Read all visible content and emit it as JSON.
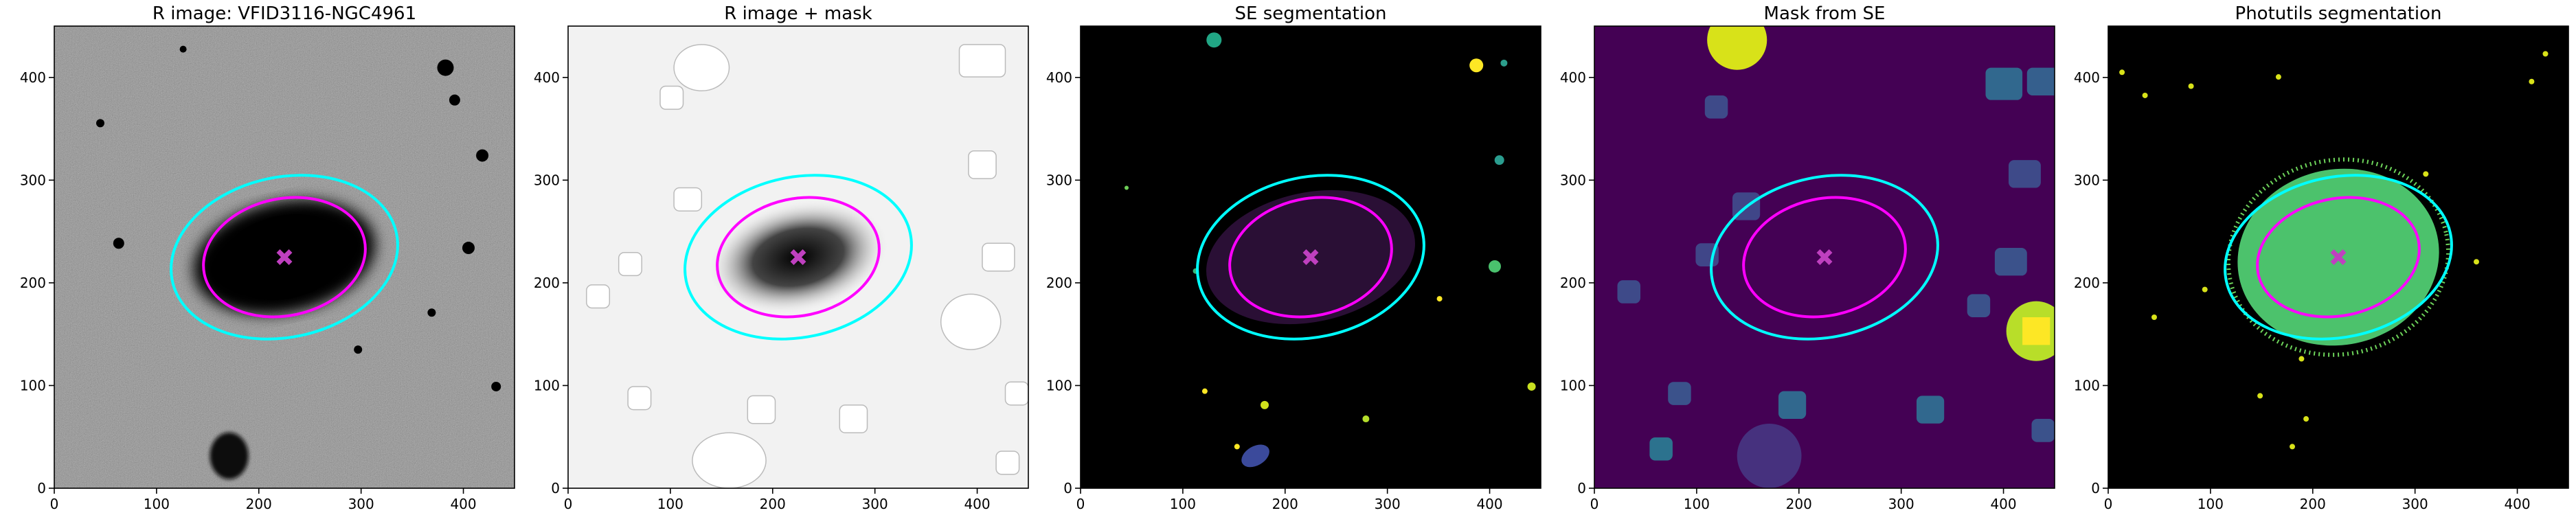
{
  "chart_data": [
    {
      "type": "image",
      "title": "R image: VFID3116-NGC4961",
      "background": "#7a7a7a",
      "xlim": [
        0,
        450
      ],
      "ylim": [
        0,
        450
      ],
      "xticks": [
        0,
        100,
        200,
        300,
        400
      ],
      "yticks": [
        0,
        100,
        200,
        300,
        400
      ],
      "ellipses": [
        {
          "color": "#00ffff",
          "cx": 225,
          "cy": 225,
          "a": 112,
          "b": 78,
          "angle": 12
        },
        {
          "color": "#ff00ff",
          "cx": 225,
          "cy": 225,
          "a": 80,
          "b": 57,
          "angle": 12
        }
      ],
      "center": {
        "x": 225,
        "y": 225,
        "color": "#bf40bf"
      }
    },
    {
      "type": "image",
      "title": "R image + mask",
      "background": "#f2f2f2",
      "xlim": [
        0,
        450
      ],
      "ylim": [
        0,
        450
      ],
      "xticks": [
        0,
        100,
        200,
        300,
        400
      ],
      "yticks": [
        0,
        100,
        200,
        300,
        400
      ],
      "ellipses": [
        {
          "color": "#00ffff",
          "cx": 225,
          "cy": 225,
          "a": 112,
          "b": 78,
          "angle": 12
        },
        {
          "color": "#ff00ff",
          "cx": 225,
          "cy": 225,
          "a": 80,
          "b": 57,
          "angle": 12
        }
      ],
      "center": {
        "x": 225,
        "y": 225,
        "color": "#bf40bf"
      }
    },
    {
      "type": "image",
      "title": "SE segmentation",
      "background": "#000000",
      "xlim": [
        0,
        450
      ],
      "ylim": [
        0,
        450
      ],
      "xticks": [
        0,
        100,
        200,
        300,
        400
      ],
      "yticks": [
        0,
        100,
        200,
        300,
        400
      ],
      "ellipses": [
        {
          "color": "#00ffff",
          "cx": 225,
          "cy": 225,
          "a": 112,
          "b": 78,
          "angle": 12
        },
        {
          "color": "#ff00ff",
          "cx": 225,
          "cy": 225,
          "a": 80,
          "b": 57,
          "angle": 12
        }
      ],
      "center": {
        "x": 225,
        "y": 225,
        "color": "#bf40bf"
      }
    },
    {
      "type": "image",
      "title": "Mask from SE",
      "background": "#440154",
      "xlim": [
        0,
        450
      ],
      "ylim": [
        0,
        450
      ],
      "xticks": [
        0,
        100,
        200,
        300,
        400
      ],
      "yticks": [
        0,
        100,
        200,
        300,
        400
      ],
      "ellipses": [
        {
          "color": "#00ffff",
          "cx": 225,
          "cy": 225,
          "a": 112,
          "b": 78,
          "angle": 12
        },
        {
          "color": "#ff00ff",
          "cx": 225,
          "cy": 225,
          "a": 80,
          "b": 57,
          "angle": 12
        }
      ],
      "center": {
        "x": 225,
        "y": 225,
        "color": "#bf40bf"
      }
    },
    {
      "type": "image",
      "title": "Photutils segmentation",
      "background": "#000000",
      "xlim": [
        0,
        450
      ],
      "ylim": [
        0,
        450
      ],
      "xticks": [
        0,
        100,
        200,
        300,
        400
      ],
      "yticks": [
        0,
        100,
        200,
        300,
        400
      ],
      "ellipses": [
        {
          "color": "#00ffff",
          "cx": 225,
          "cy": 225,
          "a": 112,
          "b": 78,
          "angle": 12
        },
        {
          "color": "#ff00ff",
          "cx": 225,
          "cy": 225,
          "a": 80,
          "b": 57,
          "angle": 12
        }
      ],
      "center": {
        "x": 225,
        "y": 225,
        "color": "#bf40bf"
      }
    }
  ]
}
